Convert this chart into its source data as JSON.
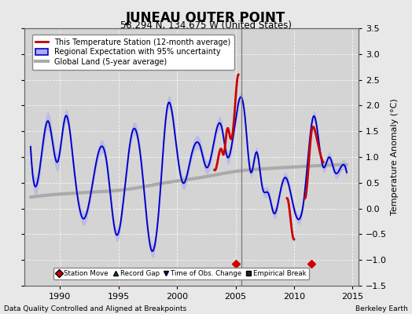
{
  "title": "JUNEAU OUTER POINT",
  "subtitle": "58.294 N, 134.675 W (United States)",
  "ylabel": "Temperature Anomaly (°C)",
  "footer_left": "Data Quality Controlled and Aligned at Breakpoints",
  "footer_right": "Berkeley Earth",
  "xlim": [
    1987.0,
    2015.5
  ],
  "ylim": [
    -1.5,
    3.5
  ],
  "yticks": [
    -1.5,
    -1.0,
    -0.5,
    0.0,
    0.5,
    1.0,
    1.5,
    2.0,
    2.5,
    3.0,
    3.5
  ],
  "xticks": [
    1990,
    1995,
    2000,
    2005,
    2010,
    2015
  ],
  "vline_x": 2005.5,
  "station_move_markers": [
    2005.0,
    2011.5
  ],
  "bg_color": "#e8e8e8",
  "plot_bg_color": "#d4d4d4",
  "grid_color": "#ffffff",
  "blue_line_color": "#0000cc",
  "blue_fill_color": "#aaaaee",
  "red_line_color": "#cc0000",
  "gray_line_color": "#aaaaaa",
  "vline_color": "#777777",
  "legend_entries": [
    "This Temperature Station (12-month average)",
    "Regional Expectation with 95% uncertainty",
    "Global Land (5-year average)"
  ]
}
